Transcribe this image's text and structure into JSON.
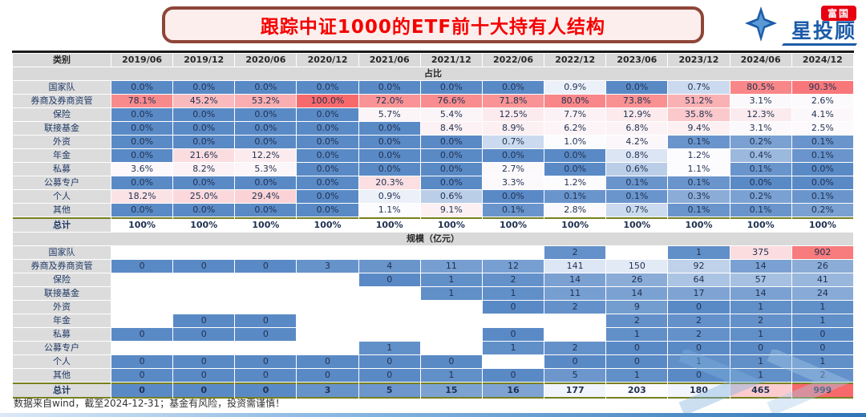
{
  "logo": {
    "badge_text": "富国",
    "brand_text": "星投顾",
    "badge_color": "#E60012",
    "brand_color": "#1C5CA8"
  },
  "footnote": "数据来自wind，截至2024-12-31；基金有风险，投资需谨慎！",
  "colors": {
    "title_red": "#F40000",
    "title_border": "#8E4538",
    "heatmap_low_blue": "#5A8AC6",
    "heatmap_mid_white": "#FCFCFF",
    "heatmap_high_red": "#F8696B",
    "header_gray": "#D9D9D9",
    "total_rule_olive": "#77801F"
  },
  "chart_data": {
    "type": "heatmap",
    "title": "跟踪中证1000的ETF前十大持有人结构",
    "row_header": "类别",
    "columns": [
      "2019/06",
      "2019/12",
      "2020/06",
      "2020/12",
      "2021/06",
      "2021/12",
      "2022/06",
      "2022/12",
      "2023/06",
      "2023/12",
      "2024/06",
      "2024/12"
    ],
    "sections": [
      {
        "label": "占比",
        "color_scale": {
          "min": 0,
          "mid": 1,
          "max": 100,
          "low_gamma": 1,
          "min_color": "#5A8AC6",
          "mid_color": "#FCFCFF",
          "max_color": "#F8696B"
        },
        "rows": [
          {
            "name": "国家队",
            "values": [
              "0.0%",
              "0.0%",
              "0.0%",
              "0.0%",
              "0.0%",
              "0.0%",
              "0.0%",
              "0.9%",
              "0.0%",
              "0.7%",
              "80.5%",
              "90.3%"
            ]
          },
          {
            "name": "券商及券商资管",
            "values": [
              "78.1%",
              "45.2%",
              "53.2%",
              "100.0%",
              "72.0%",
              "76.6%",
              "71.8%",
              "80.0%",
              "73.8%",
              "51.2%",
              "3.1%",
              "2.6%"
            ]
          },
          {
            "name": "保险",
            "values": [
              "0.0%",
              "0.0%",
              "0.0%",
              "0.0%",
              "5.7%",
              "5.4%",
              "12.5%",
              "7.7%",
              "12.9%",
              "35.8%",
              "12.3%",
              "4.1%"
            ]
          },
          {
            "name": "联接基金",
            "values": [
              "0.0%",
              "0.0%",
              "0.0%",
              "0.0%",
              "0.0%",
              "8.4%",
              "8.9%",
              "6.2%",
              "6.8%",
              "9.4%",
              "3.1%",
              "2.5%"
            ]
          },
          {
            "name": "外资",
            "values": [
              "0.0%",
              "0.0%",
              "0.0%",
              "0.0%",
              "0.0%",
              "0.0%",
              "0.7%",
              "1.0%",
              "4.2%",
              "0.1%",
              "0.2%",
              "0.1%"
            ]
          },
          {
            "name": "年金",
            "values": [
              "0.0%",
              "21.6%",
              "12.2%",
              "0.0%",
              "0.0%",
              "0.0%",
              "0.0%",
              "0.0%",
              "0.8%",
              "1.2%",
              "0.4%",
              "0.1%"
            ]
          },
          {
            "name": "私募",
            "values": [
              "3.6%",
              "8.2%",
              "5.3%",
              "0.0%",
              "0.0%",
              "0.0%",
              "2.7%",
              "0.0%",
              "0.6%",
              "1.1%",
              "0.1%",
              "0.0%"
            ]
          },
          {
            "name": "公募专户",
            "values": [
              "0.0%",
              "0.0%",
              "0.0%",
              "0.0%",
              "20.3%",
              "0.0%",
              "3.3%",
              "1.2%",
              "0.1%",
              "0.1%",
              "0.0%",
              "0.0%"
            ]
          },
          {
            "name": "个人",
            "values": [
              "18.2%",
              "25.0%",
              "29.4%",
              "0.0%",
              "0.9%",
              "0.6%",
              "0.0%",
              "0.1%",
              "0.1%",
              "0.3%",
              "0.2%",
              "0.1%"
            ]
          },
          {
            "name": "其他",
            "values": [
              "0.0%",
              "0.0%",
              "0.0%",
              "0.0%",
              "1.1%",
              "9.1%",
              "0.1%",
              "2.8%",
              "0.7%",
              "0.1%",
              "0.1%",
              "0.2%"
            ]
          }
        ],
        "total": {
          "name": "总计",
          "heatmap": false,
          "values": [
            "100%",
            "100%",
            "100%",
            "100%",
            "100%",
            "100%",
            "100%",
            "100%",
            "100%",
            "100%",
            "100%",
            "100%"
          ]
        }
      },
      {
        "label": "规模（亿元）",
        "color_scale": {
          "min": 0,
          "mid": 200,
          "max": 999,
          "low_gamma": 0.6,
          "min_color": "#5A8AC6",
          "mid_color": "#FCFCFF",
          "max_color": "#F8696B"
        },
        "rows": [
          {
            "name": "国家队",
            "values": [
              "",
              "",
              "",
              "",
              "",
              "",
              "",
              "2",
              "",
              "1",
              "375",
              "902"
            ]
          },
          {
            "name": "券商及券商资管",
            "values": [
              "0",
              "0",
              "0",
              "3",
              "4",
              "11",
              "12",
              "141",
              "150",
              "92",
              "14",
              "26"
            ]
          },
          {
            "name": "保险",
            "values": [
              "",
              "",
              "",
              "",
              "0",
              "1",
              "2",
              "14",
              "26",
              "64",
              "57",
              "41"
            ]
          },
          {
            "name": "联接基金",
            "values": [
              "",
              "",
              "",
              "",
              "",
              "1",
              "1",
              "11",
              "14",
              "17",
              "14",
              "24"
            ]
          },
          {
            "name": "外资",
            "values": [
              "",
              "",
              "",
              "",
              "",
              "",
              "0",
              "2",
              "9",
              "0",
              "1",
              "1"
            ]
          },
          {
            "name": "年金",
            "values": [
              "",
              "0",
              "0",
              "",
              "",
              "",
              "",
              "",
              "2",
              "2",
              "2",
              "1"
            ]
          },
          {
            "name": "私募",
            "values": [
              "0",
              "0",
              "0",
              "",
              "",
              "",
              "0",
              "",
              "1",
              "2",
              "1",
              "0"
            ]
          },
          {
            "name": "公募专户",
            "values": [
              "",
              "",
              "",
              "",
              "1",
              "",
              "1",
              "2",
              "0",
              "0",
              "0",
              "0"
            ]
          },
          {
            "name": "个人",
            "values": [
              "0",
              "0",
              "0",
              "0",
              "0",
              "0",
              "",
              "0",
              "0",
              "1",
              "1",
              "1"
            ]
          },
          {
            "name": "其他",
            "values": [
              "0",
              "0",
              "0",
              "0",
              "0",
              "1",
              "0",
              "5",
              "1",
              "0",
              "1",
              "2"
            ]
          }
        ],
        "total": {
          "name": "总计",
          "heatmap": true,
          "values": [
            "0",
            "0",
            "0",
            "3",
            "5",
            "15",
            "16",
            "177",
            "203",
            "180",
            "465",
            "999"
          ]
        }
      }
    ]
  }
}
